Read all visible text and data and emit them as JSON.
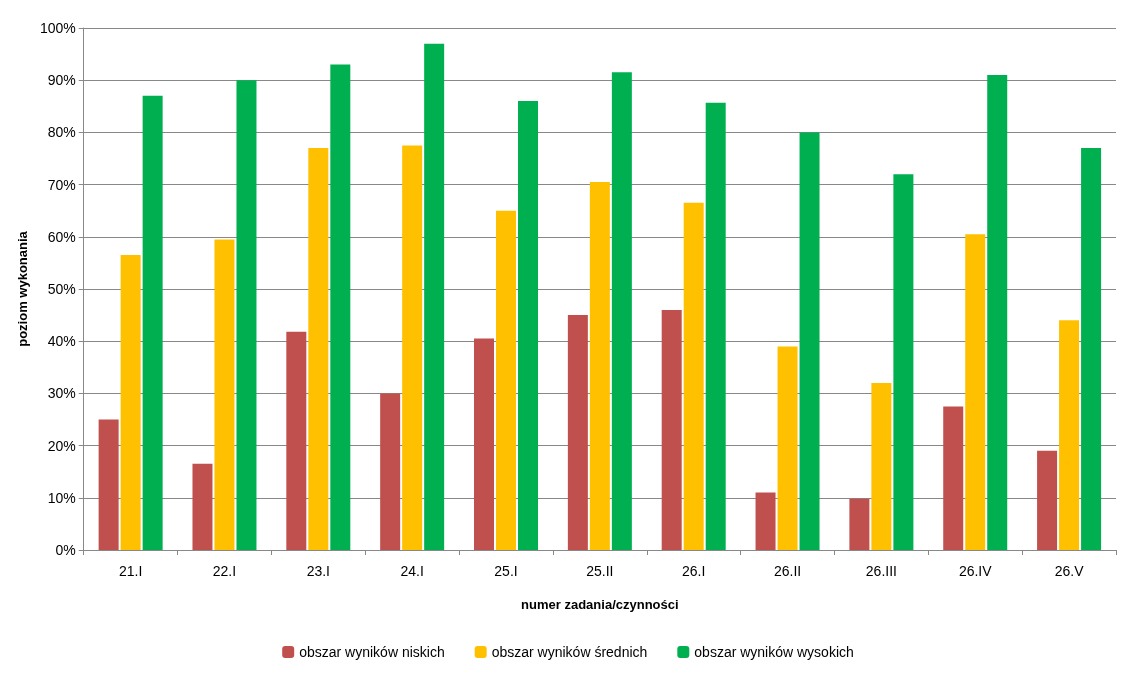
{
  "chart_data": {
    "type": "bar",
    "xlabel": "numer zadania/czynności",
    "ylabel": "poziom wykonania",
    "categories": [
      "21.I",
      "22.I",
      "23.I",
      "24.I",
      "25.I",
      "25.II",
      "26.I",
      "26.II",
      "26.III",
      "26.IV",
      "26.V"
    ],
    "series": [
      {
        "name": "obszar wyników niskich",
        "color": "#c0504d",
        "values": [
          25,
          16.5,
          41.8,
          30,
          40.5,
          45,
          46,
          11,
          9.8,
          27.5,
          19
        ]
      },
      {
        "name": "obszar wyników średnich",
        "color": "#ffc000",
        "values": [
          56.5,
          59.5,
          77,
          77.5,
          65,
          70.5,
          66.5,
          39,
          32,
          60.5,
          44
        ]
      },
      {
        "name": "obszar wyników wysokich",
        "color": "#00b050",
        "values": [
          87,
          90,
          93,
          97,
          86,
          91.5,
          85.7,
          80,
          72,
          91,
          77
        ]
      }
    ],
    "ylim": [
      0,
      100
    ],
    "yticks": [
      {
        "value": 0,
        "label": "0%"
      },
      {
        "value": 10,
        "label": "10%"
      },
      {
        "value": 20,
        "label": "20%"
      },
      {
        "value": 30,
        "label": "30%"
      },
      {
        "value": 40,
        "label": "40%"
      },
      {
        "value": 50,
        "label": "50%"
      },
      {
        "value": 60,
        "label": "60%"
      },
      {
        "value": 70,
        "label": "70%"
      },
      {
        "value": 80,
        "label": "80%"
      },
      {
        "value": 90,
        "label": "90%"
      },
      {
        "value": 100,
        "label": "100%"
      }
    ],
    "grid": "y",
    "legend": "bottom"
  }
}
